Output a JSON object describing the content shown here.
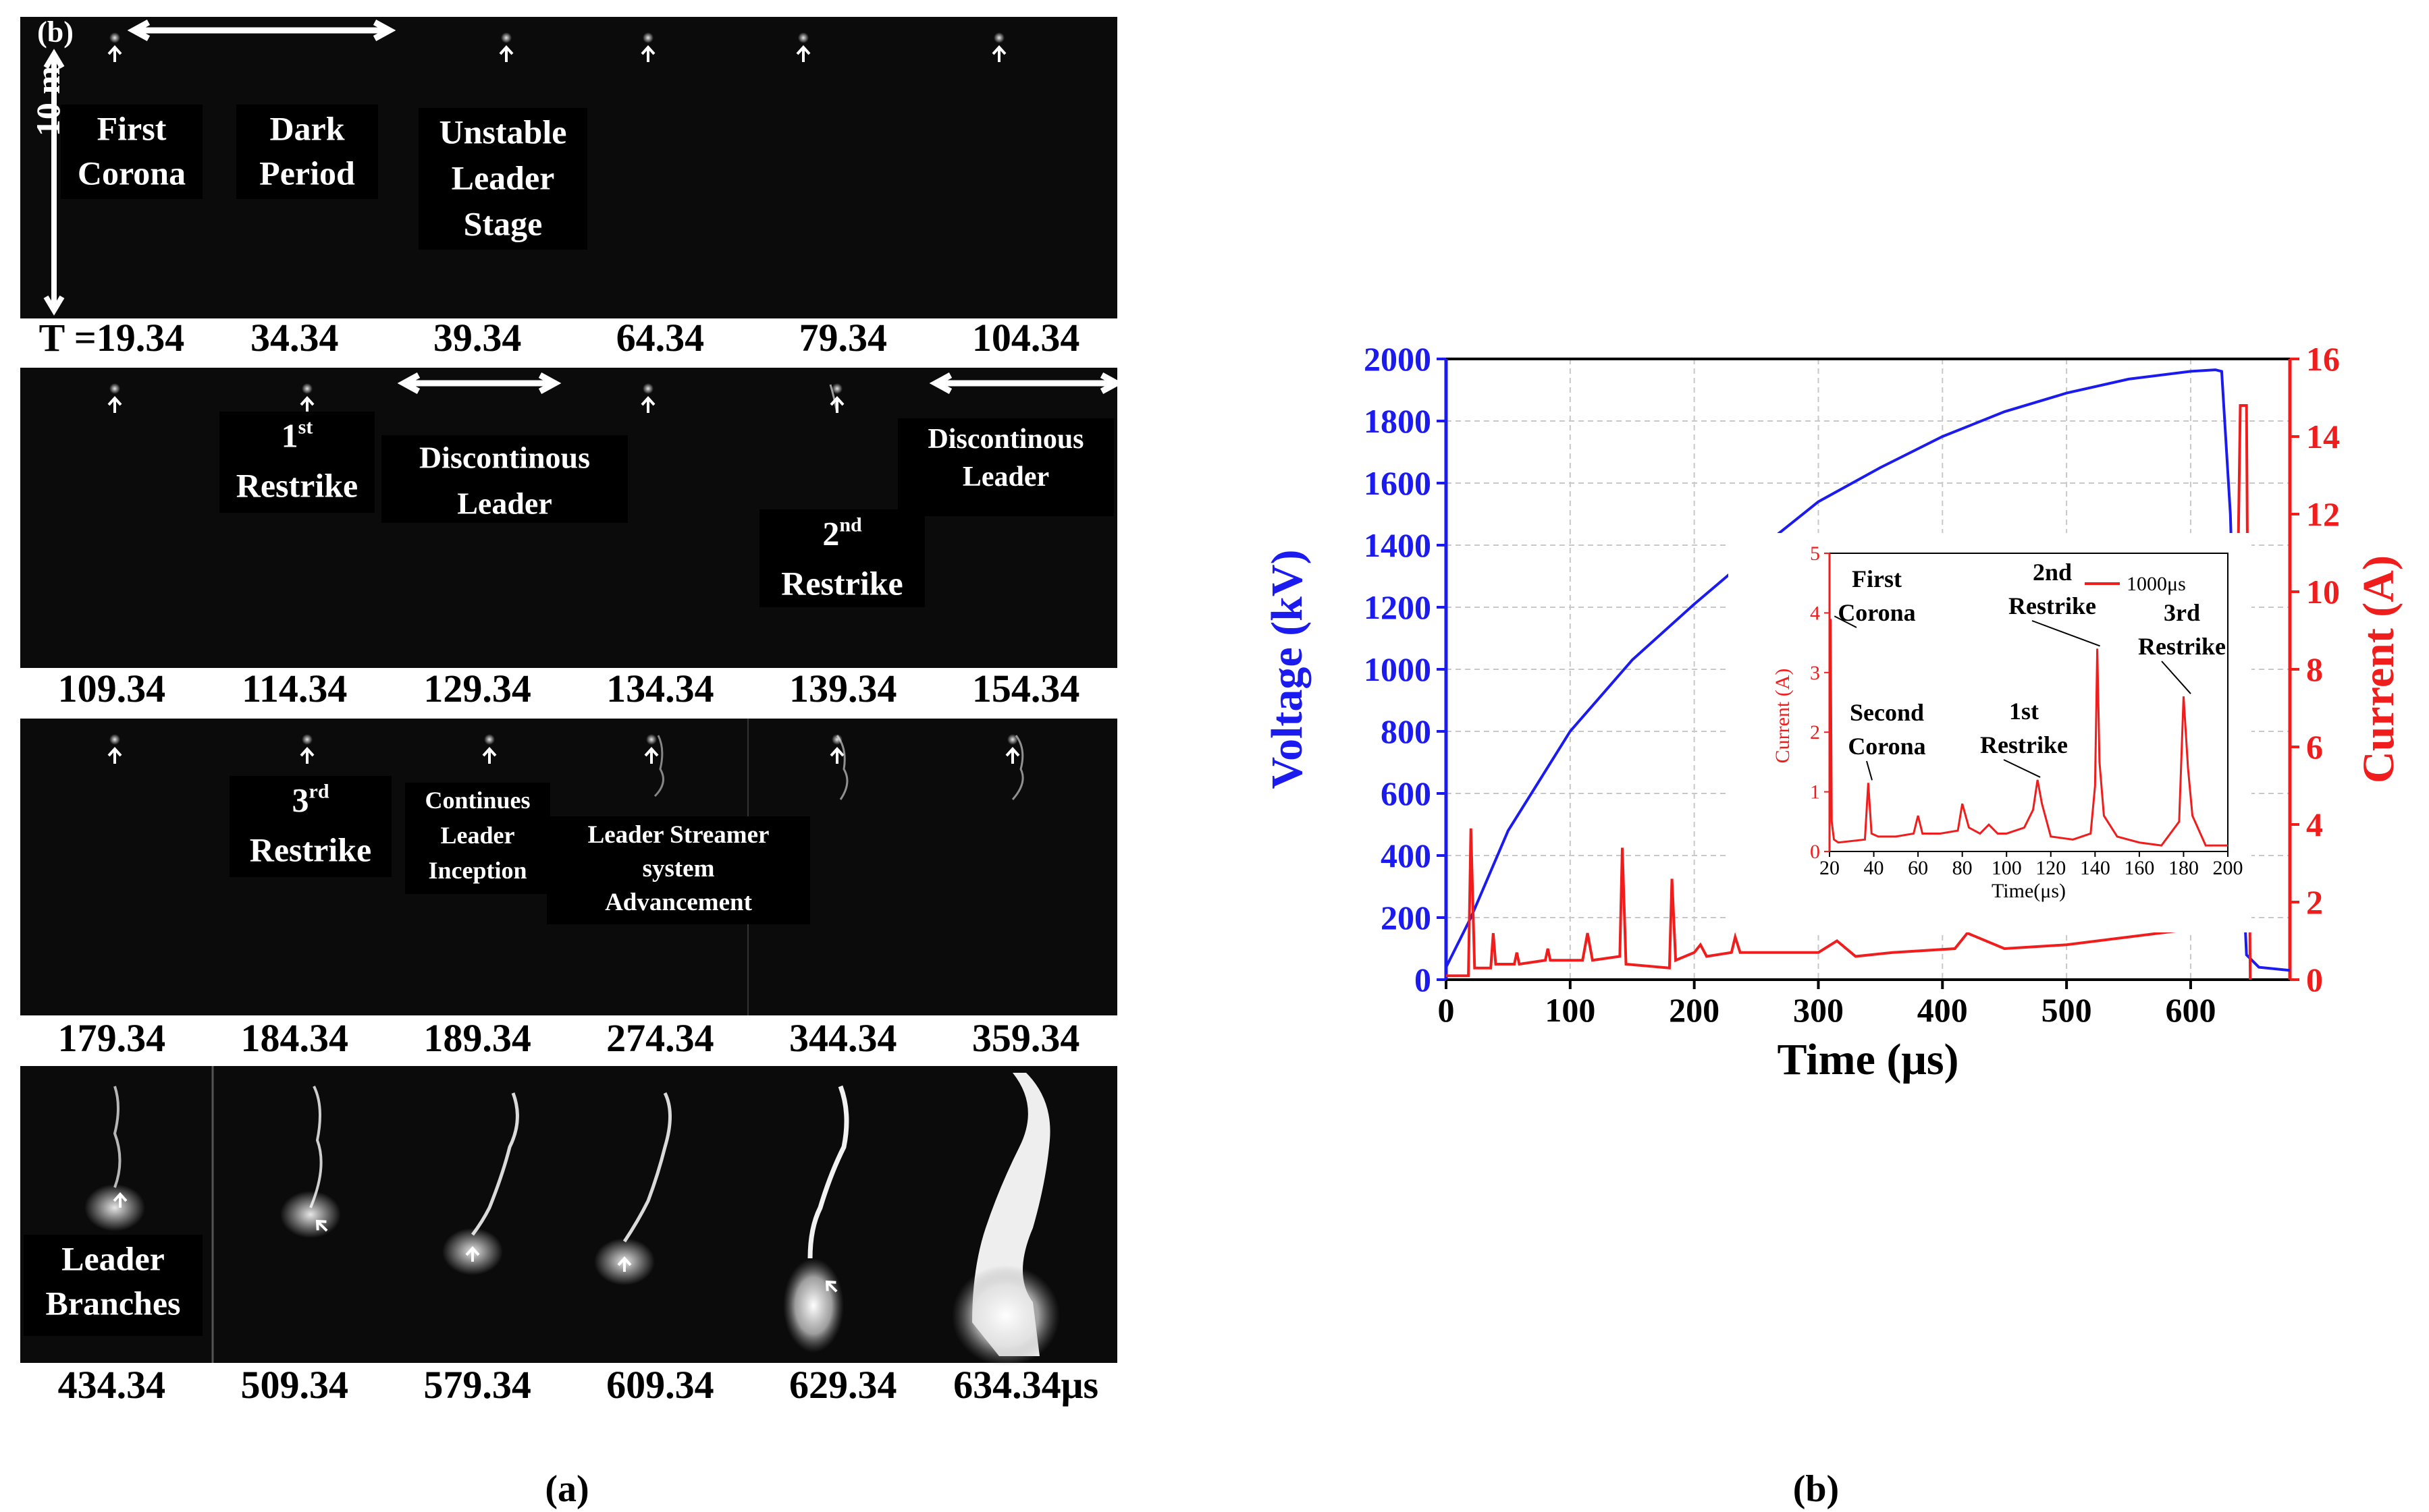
{
  "panel_a": {
    "corner_label": "(b)",
    "scale_label": "10 m",
    "caption": "(a)",
    "frames": [
      {
        "time": "T =19.34",
        "label": [
          "First",
          "Corona"
        ]
      },
      {
        "time": "34.34",
        "label": [
          "Dark",
          "Period"
        ]
      },
      {
        "time": "39.34",
        "label": [
          "Unstable",
          "Leader",
          "Stage"
        ]
      },
      {
        "time": "64.34",
        "label": []
      },
      {
        "time": "79.34",
        "label": []
      },
      {
        "time": "104.34",
        "label": []
      },
      {
        "time": "109.34",
        "label": []
      },
      {
        "time": "114.34",
        "label": [
          "1",
          "Restrike"
        ],
        "sup": "st"
      },
      {
        "time": "129.34",
        "label": [
          "Discontinous",
          "Leader"
        ]
      },
      {
        "time": "134.34",
        "label": []
      },
      {
        "time": "139.34",
        "label": [
          "2",
          "Restrike"
        ],
        "sup": "nd"
      },
      {
        "time": "154.34",
        "label": [
          "Discontinous",
          "Leader"
        ]
      },
      {
        "time": "179.34",
        "label": []
      },
      {
        "time": "184.34",
        "label": [
          "3",
          "Restrike"
        ],
        "sup": "rd"
      },
      {
        "time": "189.34",
        "label": [
          "Continues",
          "Leader",
          "Inception"
        ]
      },
      {
        "time": "274.34",
        "label": [
          "Leader Streamer",
          "system",
          "Advancement"
        ]
      },
      {
        "time": "344.34",
        "label": []
      },
      {
        "time": "359.34",
        "label": []
      },
      {
        "time": "434.34",
        "label": [
          "Leader",
          "Branches"
        ]
      },
      {
        "time": "509.34",
        "label": []
      },
      {
        "time": "579.34",
        "label": []
      },
      {
        "time": "609.34",
        "label": []
      },
      {
        "time": "629.34",
        "label": []
      },
      {
        "time": "634.34μs",
        "label": []
      }
    ]
  },
  "panel_b": {
    "caption": "(b)",
    "colors": {
      "voltage": "#1b1bf0",
      "current": "#f01d1d"
    }
  },
  "chart_data": [
    {
      "type": "line",
      "title": "",
      "xlabel": "Time (μs)",
      "ylabel": "Voltage (kV)",
      "y2label": "Current (A)",
      "xlim": [
        0,
        680
      ],
      "ylim": [
        0,
        2000
      ],
      "y2lim": [
        0,
        16
      ],
      "xticks": [
        0,
        100,
        200,
        300,
        400,
        500,
        600
      ],
      "yticks": [
        0,
        200,
        400,
        600,
        800,
        1000,
        1200,
        1400,
        1600,
        1800,
        2000
      ],
      "y2ticks": [
        0,
        2,
        4,
        6,
        8,
        10,
        12,
        14,
        16
      ],
      "grid": true,
      "series": [
        {
          "name": "Voltage",
          "axis": "left",
          "x": [
            0,
            20,
            50,
            100,
            150,
            200,
            250,
            300,
            350,
            400,
            450,
            500,
            550,
            600,
            620,
            625,
            632,
            638,
            645,
            655,
            680
          ],
          "y": [
            40,
            200,
            480,
            800,
            1030,
            1210,
            1380,
            1540,
            1650,
            1750,
            1830,
            1890,
            1935,
            1960,
            1965,
            1960,
            1500,
            700,
            80,
            40,
            30
          ]
        },
        {
          "name": "Current",
          "axis": "right",
          "x": [
            0,
            18,
            20,
            23,
            36,
            38,
            40,
            55,
            57,
            59,
            80,
            82,
            84,
            110,
            114,
            118,
            140,
            142,
            145,
            180,
            182,
            185,
            200,
            205,
            210,
            230,
            233,
            237,
            250,
            300,
            315,
            330,
            360,
            410,
            420,
            450,
            500,
            550,
            600,
            620,
            630,
            636,
            640,
            642,
            645,
            648
          ],
          "y": [
            0.1,
            0.1,
            3.9,
            0.3,
            0.3,
            1.2,
            0.4,
            0.4,
            0.7,
            0.4,
            0.5,
            0.8,
            0.5,
            0.5,
            1.2,
            0.5,
            0.6,
            3.4,
            0.4,
            0.3,
            2.6,
            0.5,
            0.7,
            0.9,
            0.6,
            0.7,
            1.1,
            0.7,
            0.7,
            0.7,
            1.0,
            0.6,
            0.7,
            0.8,
            1.2,
            0.8,
            0.9,
            1.1,
            1.3,
            1.6,
            2.5,
            6.0,
            14.8,
            14.8,
            14.8,
            0
          ]
        }
      ]
    },
    {
      "type": "line",
      "title": "",
      "xlabel": "Time(μs)",
      "ylabel": "Current (A)",
      "legend": "1000μs",
      "legend_position": "top-right",
      "xlim": [
        20,
        200
      ],
      "ylim": [
        0,
        5
      ],
      "xticks": [
        20,
        40,
        60,
        80,
        100,
        120,
        140,
        160,
        180,
        200
      ],
      "yticks": [
        0,
        1,
        2,
        3,
        4,
        5
      ],
      "annotations": [
        {
          "text": [
            "First",
            "Corona"
          ],
          "x": 21,
          "y": 3.9
        },
        {
          "text": [
            "Second",
            "Corona"
          ],
          "x": 38,
          "y": 1.15
        },
        {
          "text": [
            "1st",
            "Restrike"
          ],
          "x": 114,
          "y": 1.2
        },
        {
          "text": [
            "2nd",
            "Restrike"
          ],
          "x": 141,
          "y": 3.4
        },
        {
          "text": [
            "3rd",
            "Restrike"
          ],
          "x": 182,
          "y": 2.6
        }
      ],
      "series": [
        {
          "name": "1000μs",
          "x": [
            20,
            20.5,
            21,
            22,
            24,
            36,
            37.5,
            39,
            42,
            50,
            58,
            60,
            62,
            70,
            78,
            80,
            83,
            88,
            92,
            96,
            100,
            108,
            112,
            114,
            116,
            120,
            130,
            138,
            140,
            141,
            142,
            144,
            150,
            160,
            170,
            178,
            180,
            182,
            184,
            190,
            200
          ],
          "y": [
            0.1,
            3.9,
            0.5,
            0.2,
            0.15,
            0.2,
            1.15,
            0.3,
            0.25,
            0.25,
            0.3,
            0.6,
            0.3,
            0.3,
            0.35,
            0.8,
            0.4,
            0.3,
            0.45,
            0.3,
            0.3,
            0.4,
            0.7,
            1.2,
            0.8,
            0.25,
            0.2,
            0.3,
            1.1,
            3.4,
            1.5,
            0.6,
            0.25,
            0.15,
            0.1,
            0.5,
            2.6,
            1.4,
            0.6,
            0.1,
            0.1
          ]
        }
      ]
    }
  ]
}
